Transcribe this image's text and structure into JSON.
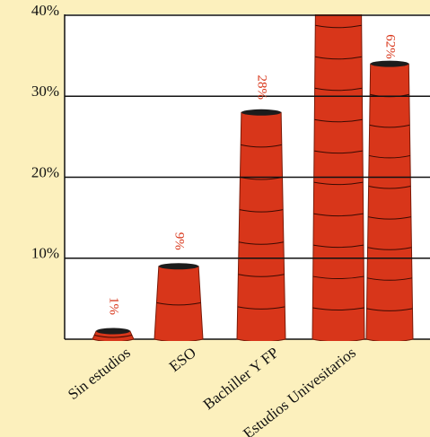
{
  "chart_data": {
    "type": "bar",
    "categories": [
      "Sin estudios",
      "ESO",
      "Bachiller Y FP",
      "Estudios Univesitarios",
      null
    ],
    "values": [
      1,
      9,
      28,
      62,
      34
    ],
    "value_labels": [
      "1%",
      "9%",
      "28%",
      "62%",
      null
    ],
    "color": "#d8361a",
    "ylim": [
      0,
      40
    ],
    "yticks": [
      {
        "value": 10,
        "label": "10%"
      },
      {
        "value": 20,
        "label": "20%"
      },
      {
        "value": 30,
        "label": "30%"
      },
      {
        "value": 40,
        "label": "40%"
      }
    ],
    "grid": true
  }
}
